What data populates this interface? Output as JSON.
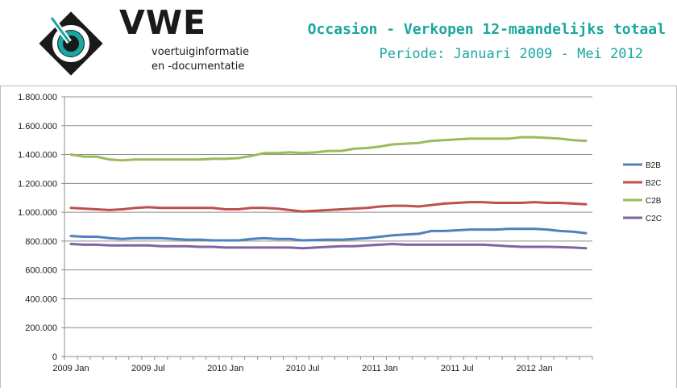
{
  "header": {
    "brand": "VWE",
    "tagline_line1": "voertuiginformatie",
    "tagline_line2": "en -documentatie",
    "title": "Occasion - Verkopen 12-maandelijks totaal",
    "subtitle": "Periode: Januari 2009 - Mei 2012",
    "accent_color": "#1aa7a0"
  },
  "chart_data": {
    "type": "line",
    "y_ticks": [
      "0",
      "200.000",
      "400.000",
      "600.000",
      "800.000",
      "1.000.000",
      "1.200.000",
      "1.400.000",
      "1.600.000",
      "1.800.000"
    ],
    "x_ticks": [
      "2009 Jan",
      "2009 Jul",
      "2010 Jan",
      "2010 Jul",
      "2011 Jan",
      "2011 Jul",
      "2012 Jan"
    ],
    "ylim": [
      0,
      1800000
    ],
    "grid": true,
    "legend_position": "right",
    "categories": [
      "2009 Jan",
      "2009 Feb",
      "2009 Mar",
      "2009 Apr",
      "2009 May",
      "2009 Jun",
      "2009 Jul",
      "2009 Aug",
      "2009 Sep",
      "2009 Oct",
      "2009 Nov",
      "2009 Dec",
      "2010 Jan",
      "2010 Feb",
      "2010 Mar",
      "2010 Apr",
      "2010 May",
      "2010 Jun",
      "2010 Jul",
      "2010 Aug",
      "2010 Sep",
      "2010 Oct",
      "2010 Nov",
      "2010 Dec",
      "2011 Jan",
      "2011 Feb",
      "2011 Mar",
      "2011 Apr",
      "2011 May",
      "2011 Jun",
      "2011 Jul",
      "2011 Aug",
      "2011 Sep",
      "2011 Oct",
      "2011 Nov",
      "2011 Dec",
      "2012 Jan",
      "2012 Feb",
      "2012 Mar",
      "2012 Apr",
      "2012 May"
    ],
    "series": [
      {
        "name": "B2B",
        "color": "#4f81bd",
        "values": [
          835000,
          830000,
          830000,
          820000,
          815000,
          820000,
          820000,
          820000,
          815000,
          810000,
          810000,
          805000,
          805000,
          805000,
          815000,
          820000,
          815000,
          815000,
          805000,
          808000,
          810000,
          810000,
          815000,
          820000,
          830000,
          840000,
          845000,
          850000,
          870000,
          870000,
          875000,
          880000,
          880000,
          880000,
          885000,
          885000,
          885000,
          880000,
          870000,
          865000,
          855000
        ]
      },
      {
        "name": "B2C",
        "color": "#c0504d",
        "values": [
          1030000,
          1025000,
          1020000,
          1015000,
          1020000,
          1030000,
          1035000,
          1030000,
          1030000,
          1030000,
          1030000,
          1030000,
          1020000,
          1020000,
          1030000,
          1030000,
          1025000,
          1015000,
          1005000,
          1010000,
          1015000,
          1020000,
          1025000,
          1030000,
          1040000,
          1045000,
          1045000,
          1040000,
          1050000,
          1060000,
          1065000,
          1070000,
          1070000,
          1065000,
          1065000,
          1065000,
          1070000,
          1065000,
          1065000,
          1060000,
          1055000
        ]
      },
      {
        "name": "C2B",
        "color": "#9bbb59",
        "values": [
          1400000,
          1385000,
          1385000,
          1365000,
          1360000,
          1365000,
          1365000,
          1365000,
          1365000,
          1365000,
          1365000,
          1370000,
          1370000,
          1375000,
          1390000,
          1410000,
          1410000,
          1415000,
          1410000,
          1415000,
          1425000,
          1425000,
          1440000,
          1445000,
          1455000,
          1470000,
          1475000,
          1480000,
          1495000,
          1500000,
          1505000,
          1510000,
          1510000,
          1510000,
          1510000,
          1520000,
          1520000,
          1515000,
          1510000,
          1500000,
          1495000
        ]
      },
      {
        "name": "C2C",
        "color": "#8064a2",
        "values": [
          780000,
          775000,
          775000,
          770000,
          770000,
          770000,
          770000,
          765000,
          765000,
          765000,
          760000,
          760000,
          755000,
          755000,
          755000,
          755000,
          755000,
          755000,
          750000,
          755000,
          760000,
          765000,
          765000,
          770000,
          775000,
          780000,
          775000,
          775000,
          775000,
          775000,
          775000,
          775000,
          775000,
          770000,
          765000,
          760000,
          760000,
          760000,
          758000,
          755000,
          750000
        ]
      }
    ]
  }
}
